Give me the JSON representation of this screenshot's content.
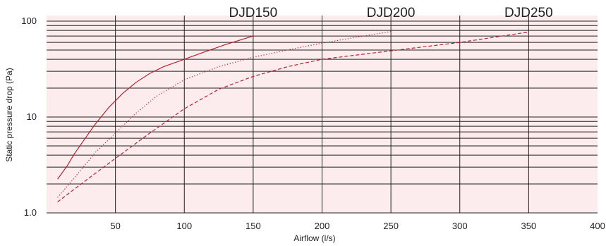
{
  "chart_data": {
    "type": "line",
    "xlabel": "Airflow (l/s)",
    "ylabel": "Static pressure drop (Pa)",
    "x_scale": "linear",
    "y_scale": "log",
    "xlim": [
      0,
      400
    ],
    "ylim": [
      1,
      100
    ],
    "x_ticks": [
      50,
      100,
      150,
      200,
      250,
      300,
      350,
      400
    ],
    "y_ticks": [
      {
        "value": 1,
        "label": "1.0"
      },
      {
        "value": 10,
        "label": "10"
      },
      {
        "value": 100,
        "label": "100"
      }
    ],
    "grid": true,
    "plot_background": "#fdeced",
    "series_color": "#b2232c",
    "series": [
      {
        "name": "DJD150",
        "line_style": "solid",
        "x": [
          8,
          15,
          20,
          27,
          35,
          45,
          55,
          65,
          75,
          85,
          100,
          115,
          130,
          150
        ],
        "y": [
          2.25,
          3.1,
          4.1,
          5.7,
          8.3,
          12.5,
          17.5,
          23.0,
          28.5,
          33.5,
          40,
          48,
          57,
          70
        ]
      },
      {
        "name": "DJD200",
        "line_style": "dotted",
        "x": [
          8,
          20,
          35,
          50,
          65,
          80,
          100,
          125,
          150,
          175,
          200,
          225,
          250
        ],
        "y": [
          1.45,
          2.3,
          4.2,
          6.8,
          11.0,
          16.5,
          24.5,
          33.5,
          42,
          50,
          59,
          68,
          78
        ]
      },
      {
        "name": "DJD250",
        "line_style": "dashed",
        "x": [
          8,
          25,
          50,
          75,
          100,
          125,
          150,
          175,
          200,
          250,
          300,
          350
        ],
        "y": [
          1.3,
          2.0,
          3.7,
          6.8,
          12.2,
          19.5,
          26.5,
          33.5,
          40,
          49,
          60,
          77
        ]
      }
    ]
  }
}
